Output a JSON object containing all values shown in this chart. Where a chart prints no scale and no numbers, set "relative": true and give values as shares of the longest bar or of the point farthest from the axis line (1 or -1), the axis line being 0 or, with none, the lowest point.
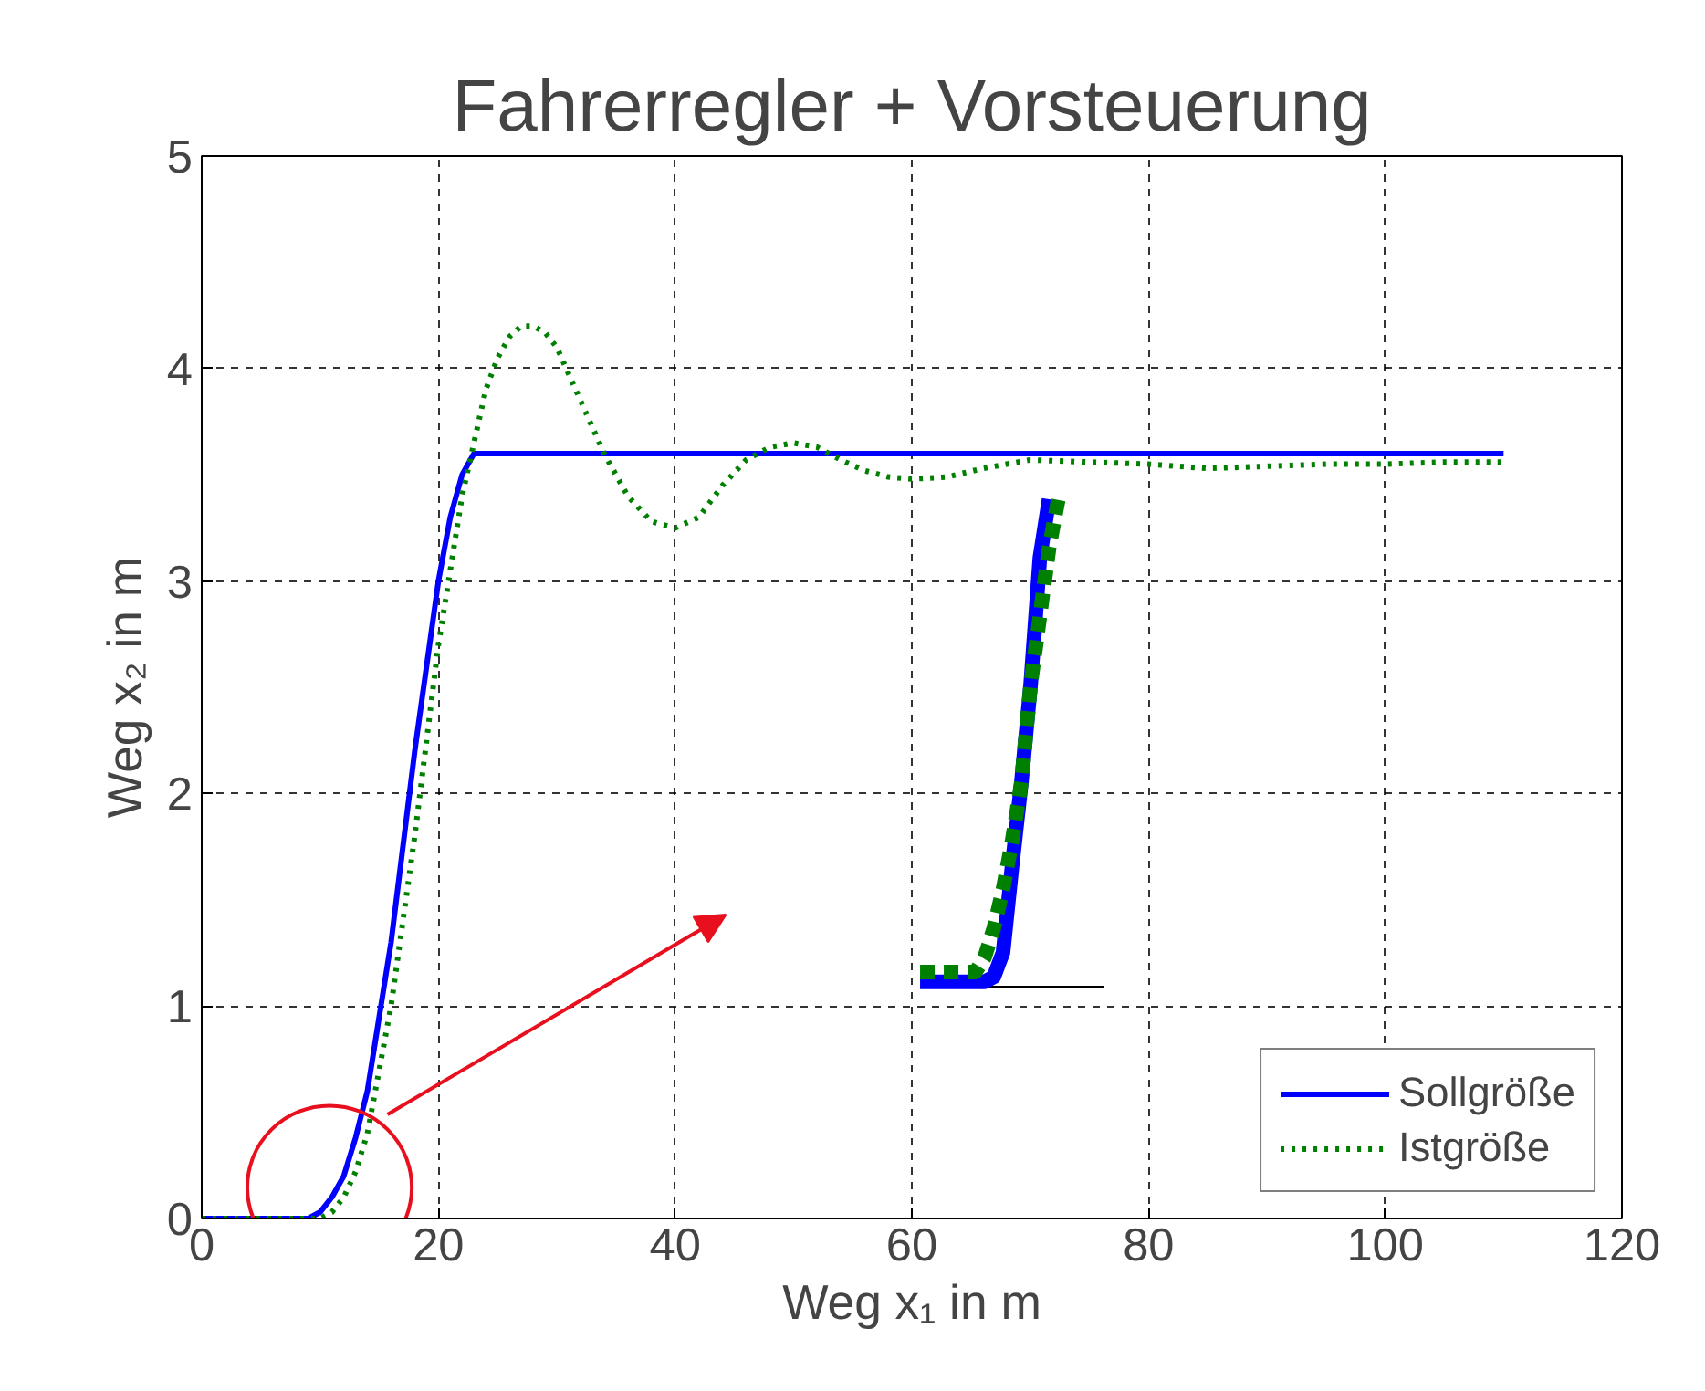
{
  "chart_data": [
    {
      "type": "line",
      "title": "Fahrerregler + Vorsteuerung",
      "xlabel": "Weg x₁ in m",
      "ylabel": "Weg x₂ in m",
      "xlim": [
        0,
        120
      ],
      "ylim": [
        0,
        5
      ],
      "xticks": [
        0,
        20,
        40,
        60,
        80,
        100,
        120
      ],
      "yticks": [
        0,
        1,
        2,
        3,
        4,
        5
      ],
      "grid": true,
      "legend": "bottom right",
      "series": [
        {
          "name": "Sollgröße",
          "color": "#0000ff",
          "line_style": "solid",
          "x": [
            0,
            5,
            9,
            10,
            11,
            12,
            13,
            14,
            15,
            16,
            17,
            18,
            19,
            20,
            21,
            22,
            23,
            40,
            60,
            80,
            100,
            110
          ],
          "values": [
            0,
            0,
            0,
            0.03,
            0.1,
            0.2,
            0.38,
            0.6,
            0.95,
            1.3,
            1.75,
            2.2,
            2.6,
            3.0,
            3.3,
            3.5,
            3.6,
            3.6,
            3.6,
            3.6,
            3.6,
            3.6
          ]
        },
        {
          "name": "Istgröße",
          "color": "#008000",
          "line_style": "dotted",
          "x": [
            0,
            5,
            10,
            11,
            12,
            13,
            14,
            15,
            16,
            17,
            18,
            19,
            20,
            21,
            22,
            23,
            24,
            25,
            26,
            27,
            28,
            29,
            30,
            32,
            34,
            36,
            38,
            40,
            42,
            44,
            46,
            48,
            50,
            52,
            54,
            56,
            58,
            60,
            63,
            66,
            70,
            75,
            80,
            85,
            90,
            95,
            100,
            105,
            110
          ],
          "values": [
            0,
            0,
            0,
            0.03,
            0.1,
            0.22,
            0.4,
            0.7,
            1.0,
            1.4,
            1.8,
            2.25,
            2.7,
            3.05,
            3.4,
            3.65,
            3.9,
            4.05,
            4.15,
            4.2,
            4.2,
            4.17,
            4.1,
            3.85,
            3.6,
            3.4,
            3.28,
            3.25,
            3.3,
            3.45,
            3.57,
            3.63,
            3.65,
            3.63,
            3.57,
            3.52,
            3.49,
            3.48,
            3.49,
            3.53,
            3.57,
            3.56,
            3.55,
            3.53,
            3.54,
            3.55,
            3.55,
            3.56,
            3.56
          ]
        }
      ]
    },
    {
      "type": "line",
      "relative": true,
      "categories": [
        null,
        null,
        null,
        null,
        null,
        null,
        null,
        null,
        null,
        null,
        null,
        null,
        null,
        null,
        null,
        null,
        null,
        null,
        null,
        null,
        null
      ],
      "series": [
        {
          "color": "#0000ff",
          "line_style": "solid",
          "values": [
            0.01,
            0.01,
            0.01,
            0.01,
            0.01,
            0.01,
            0.01,
            0.01,
            0.02,
            0.07,
            0.25,
            0.42,
            0.62,
            0.88,
            1.0,
            null,
            null,
            null,
            null,
            null,
            null
          ]
        },
        {
          "color": "#008000",
          "line_style": "dotted",
          "values": [
            0.03,
            0.03,
            0.03,
            0.03,
            0.03,
            0.03,
            0.03,
            0.06,
            0.12,
            0.2,
            0.3,
            0.42,
            0.62,
            0.76,
            0.9,
            1.0,
            null,
            null,
            null,
            null,
            null
          ]
        }
      ]
    }
  ]
}
